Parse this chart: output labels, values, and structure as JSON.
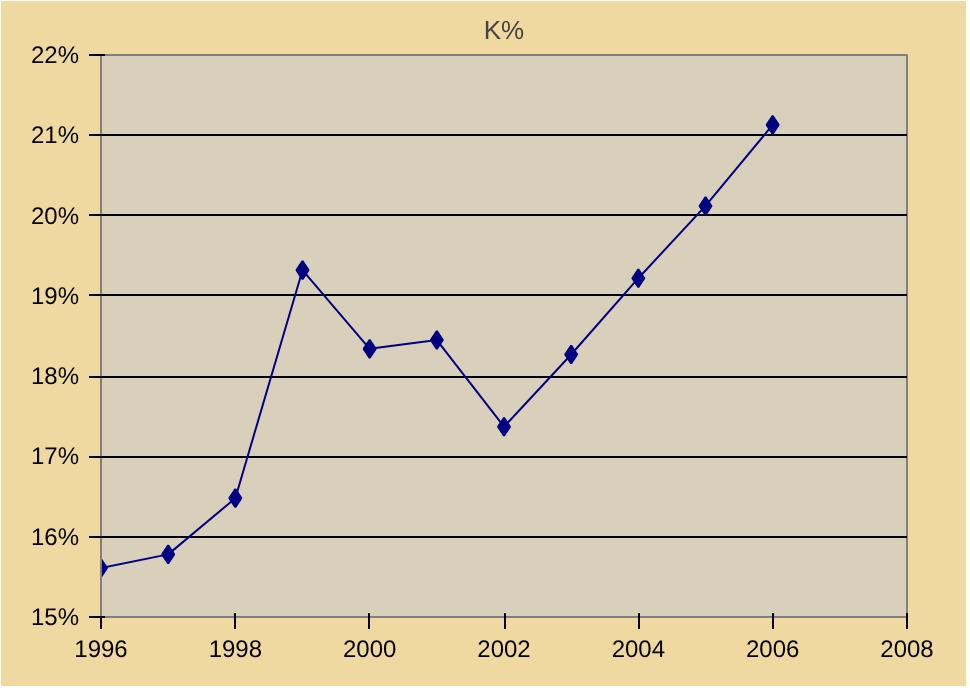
{
  "chart_data": {
    "type": "line",
    "title": "K%",
    "x": [
      1996,
      1997,
      1998,
      1999,
      2000,
      2001,
      2002,
      2003,
      2004,
      2005,
      2006
    ],
    "series": [
      {
        "color": "#000080",
        "values": [
          15.61,
          15.78,
          16.48,
          19.32,
          18.34,
          18.45,
          17.37,
          18.27,
          19.22,
          20.12,
          21.13
        ]
      }
    ],
    "xlim": [
      1996,
      2008
    ],
    "xticks": [
      1996,
      1998,
      2000,
      2002,
      2004,
      2006,
      2008
    ],
    "ylim": [
      15,
      22
    ],
    "yticks": [
      {
        "value": 15,
        "label": "15%"
      },
      {
        "value": 16,
        "label": "16%"
      },
      {
        "value": 17,
        "label": "17%"
      },
      {
        "value": 18,
        "label": "18%"
      },
      {
        "value": 19,
        "label": "19%"
      },
      {
        "value": 20,
        "label": "20%"
      },
      {
        "value": 21,
        "label": "21%"
      },
      {
        "value": 22,
        "label": "22%"
      }
    ],
    "grid": "y",
    "marker": "diamond",
    "line_style": "solid"
  }
}
